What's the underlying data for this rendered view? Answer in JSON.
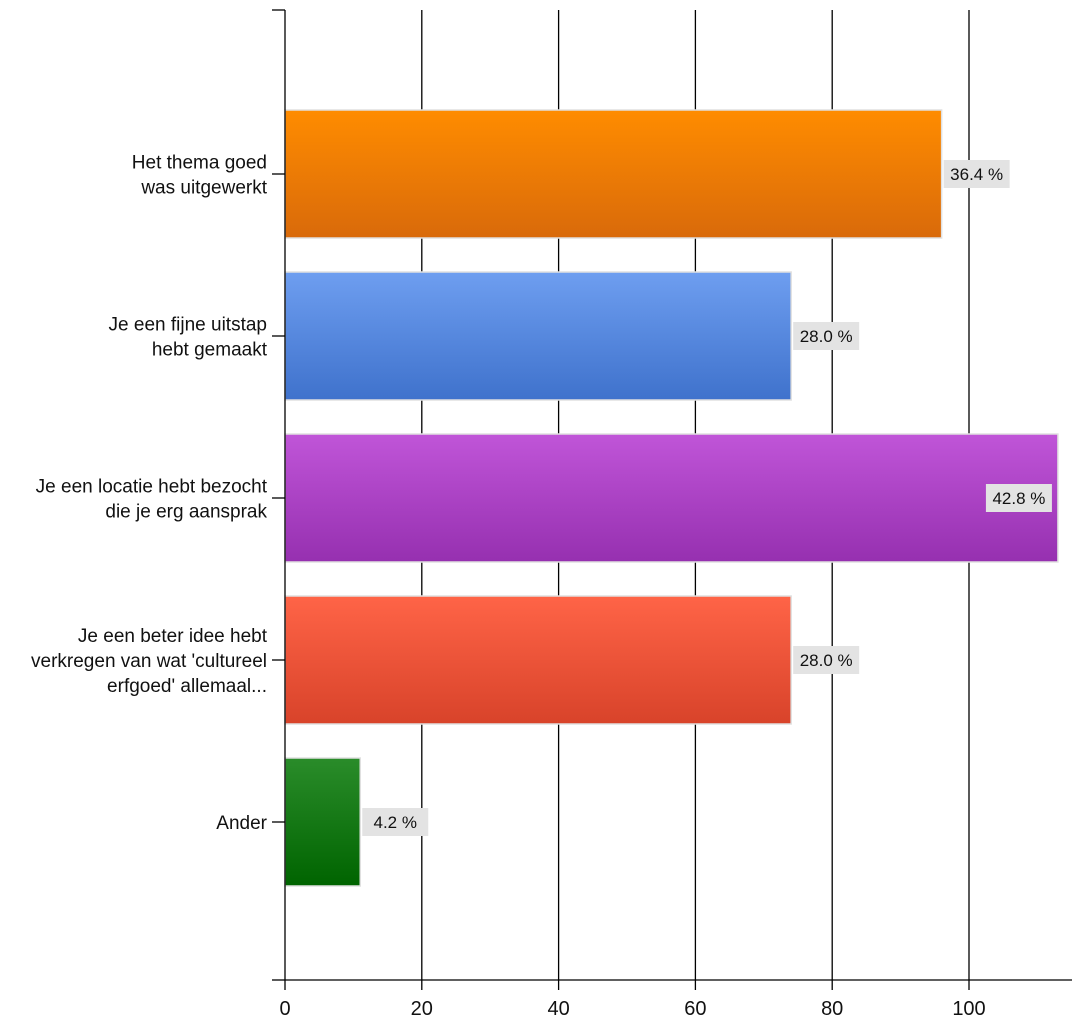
{
  "chart_data": {
    "type": "bar",
    "orientation": "horizontal",
    "categories": [
      [
        "Het thema goed",
        "was uitgewerkt"
      ],
      [
        "Je een fijne uitstap",
        "hebt gemaakt"
      ],
      [
        "Je een locatie hebt bezocht",
        "die je erg aansprak"
      ],
      [
        "Je een beter idee hebt",
        "verkregen van wat 'cultureel",
        "erfgoed' allemaal..."
      ],
      [
        "Ander"
      ]
    ],
    "values": [
      96,
      74,
      113,
      74,
      11
    ],
    "data_labels": [
      "36.4 %",
      "28.0 %",
      "42.8 %",
      "28.0 %",
      "4.2 %"
    ],
    "colors": [
      [
        "#ff8c00",
        "#d96a0a"
      ],
      [
        "#6e9ef0",
        "#3f72cc"
      ],
      [
        "#c055d8",
        "#9630b0"
      ],
      [
        "#ff6447",
        "#d8432a"
      ],
      [
        "#2a8c2a",
        "#006400"
      ]
    ],
    "xlim": [
      0,
      113
    ],
    "xticks": [
      "0",
      "20",
      "40",
      "60",
      "80",
      "100"
    ],
    "grid": true,
    "xlabel": "",
    "ylabel": "",
    "title": ""
  }
}
